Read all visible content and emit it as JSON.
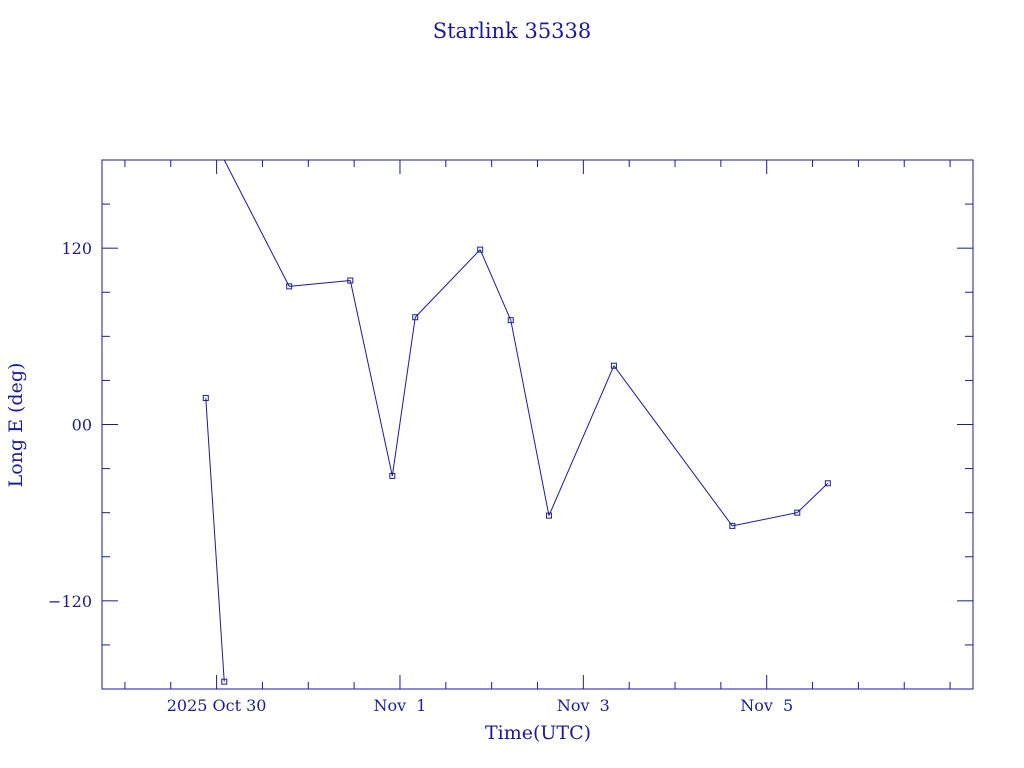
{
  "chart_data": {
    "type": "line",
    "title": "Starlink 35338",
    "xlabel": "Time(UTC)",
    "ylabel": "Long E (deg)",
    "ylim": [
      -180,
      180
    ],
    "xlim": [
      "2025-10-28T18:00",
      "2025-11-07T06:00"
    ],
    "y_ticks": [
      120,
      0,
      -120
    ],
    "y_tick_labels": [
      "120",
      "00",
      "−120"
    ],
    "y_minor_step": 30,
    "x_ticks": [
      "2025-10-30T00:00",
      "2025-11-01T00:00",
      "2025-11-03T00:00",
      "2025-11-05T00:00"
    ],
    "x_tick_labels": [
      "2025 Oct 30",
      "Nov  1",
      "Nov  3",
      "Nov  5"
    ],
    "x_minor_step_hours": 12,
    "grid": false,
    "colors": {
      "axes": "#1a1a9e",
      "line": "#1a1a9e"
    },
    "series": [
      {
        "points": [
          {
            "x": "2025-10-29T21:10",
            "y": 18
          },
          {
            "x": "2025-10-30T02:00",
            "y": -175,
            "break_after": true
          },
          {
            "x": "2025-10-30T02:00",
            "y": 185
          },
          {
            "x": "2025-10-30T19:00",
            "y": 94
          },
          {
            "x": "2025-10-31T11:00",
            "y": 98
          },
          {
            "x": "2025-10-31T22:00",
            "y": -35
          },
          {
            "x": "2025-11-01T04:00",
            "y": 73
          },
          {
            "x": "2025-11-01T21:00",
            "y": 119
          },
          {
            "x": "2025-11-02T05:00",
            "y": 71
          },
          {
            "x": "2025-11-02T15:00",
            "y": -62
          },
          {
            "x": "2025-11-03T08:00",
            "y": 40
          },
          {
            "x": "2025-11-04T15:00",
            "y": -69
          },
          {
            "x": "2025-11-05T08:00",
            "y": -60
          },
          {
            "x": "2025-11-05T16:00",
            "y": -40
          }
        ]
      }
    ]
  }
}
